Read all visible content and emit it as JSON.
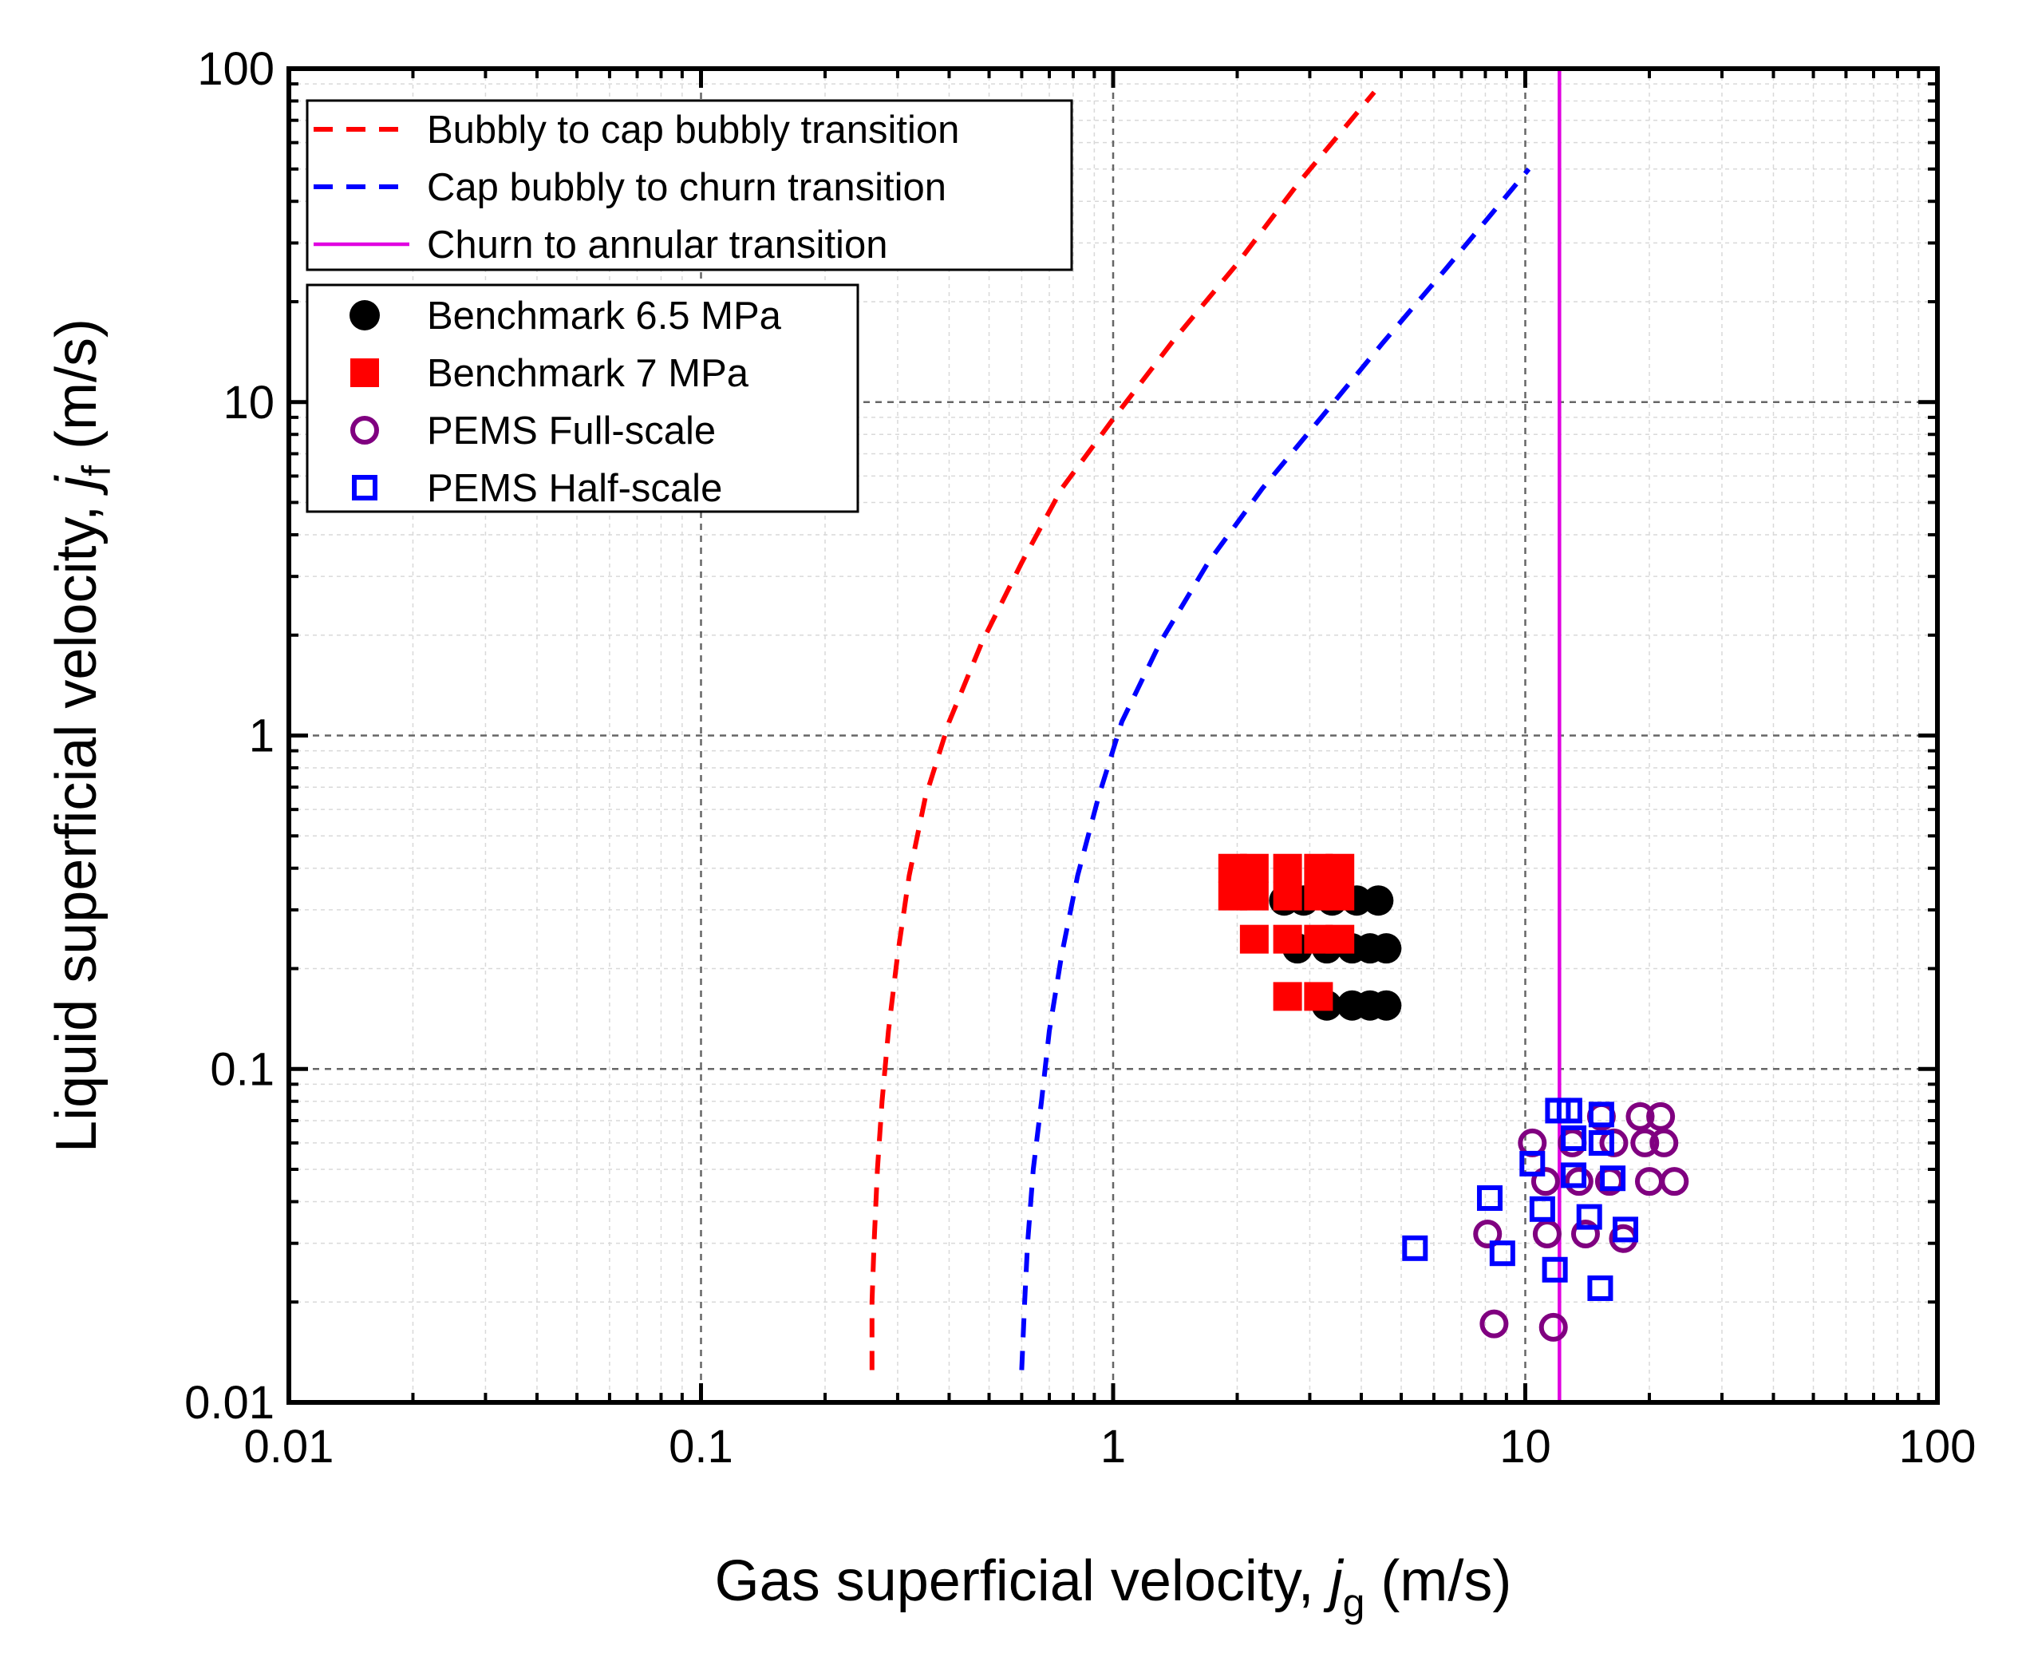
{
  "chart_data": {
    "type": "scatter",
    "xlabel_main": "Gas superficial velocity, ",
    "xlabel_var": "j",
    "xlabel_sub": "g",
    "xlabel_unit": " (m/s)",
    "ylabel_main": "Liquid superficial velocity, ",
    "ylabel_var": "j",
    "ylabel_sub": "f",
    "ylabel_unit": " (m/s)",
    "xscale": "log",
    "yscale": "log",
    "xlim": [
      0.01,
      100
    ],
    "ylim": [
      0.01,
      100
    ],
    "x_ticks": [
      {
        "value": 0.01,
        "label": "0.01"
      },
      {
        "value": 0.1,
        "label": "0.1"
      },
      {
        "value": 1,
        "label": "1"
      },
      {
        "value": 10,
        "label": "10"
      },
      {
        "value": 100,
        "label": "100"
      }
    ],
    "y_ticks": [
      {
        "value": 0.01,
        "label": "0.01"
      },
      {
        "value": 0.1,
        "label": "0.1"
      },
      {
        "value": 1,
        "label": "1"
      },
      {
        "value": 10,
        "label": "10"
      },
      {
        "value": 100,
        "label": "100"
      }
    ],
    "grid": true,
    "legend_lines_placement": "top-left",
    "legend_markers_placement": "top-left",
    "lines": [
      {
        "name": "Bubbly to cap bubbly transition",
        "color": "#ff0000",
        "style": "dashed",
        "points": [
          [
            0.26,
            0.0125
          ],
          [
            0.26,
            0.02
          ],
          [
            0.263,
            0.03
          ],
          [
            0.268,
            0.05
          ],
          [
            0.275,
            0.08
          ],
          [
            0.285,
            0.13
          ],
          [
            0.3,
            0.22
          ],
          [
            0.32,
            0.38
          ],
          [
            0.35,
            0.65
          ],
          [
            0.4,
            1.1
          ],
          [
            0.48,
            1.9
          ],
          [
            0.6,
            3.3
          ],
          [
            0.75,
            5.5
          ],
          [
            1.0,
            8.9
          ],
          [
            1.4,
            15.3
          ],
          [
            2.0,
            26
          ],
          [
            2.8,
            45
          ],
          [
            4.3,
            85
          ]
        ]
      },
      {
        "name": "Cap bubbly to churn transition",
        "color": "#0000ff",
        "style": "dashed",
        "points": [
          [
            0.6,
            0.0125
          ],
          [
            0.61,
            0.02
          ],
          [
            0.62,
            0.03
          ],
          [
            0.64,
            0.05
          ],
          [
            0.67,
            0.08
          ],
          [
            0.7,
            0.13
          ],
          [
            0.75,
            0.22
          ],
          [
            0.82,
            0.38
          ],
          [
            0.92,
            0.65
          ],
          [
            1.05,
            1.1
          ],
          [
            1.3,
            1.9
          ],
          [
            1.7,
            3.3
          ],
          [
            2.3,
            5.5
          ],
          [
            3.2,
            9.0
          ],
          [
            4.5,
            15
          ],
          [
            6.4,
            25
          ],
          [
            10.2,
            50
          ]
        ]
      },
      {
        "name": "Churn to annular transition",
        "color": "#e000e0",
        "style": "solid",
        "points": [
          [
            12.1,
            0.01
          ],
          [
            12.1,
            100
          ]
        ]
      }
    ],
    "series": [
      {
        "name": "Benchmark 6.5 MPa",
        "marker": "circle-filled",
        "color": "#000000",
        "points": [
          [
            2.6,
            0.32
          ],
          [
            2.9,
            0.32
          ],
          [
            3.4,
            0.32
          ],
          [
            3.9,
            0.32
          ],
          [
            4.4,
            0.32
          ],
          [
            2.8,
            0.23
          ],
          [
            3.3,
            0.23
          ],
          [
            3.8,
            0.23
          ],
          [
            4.2,
            0.23
          ],
          [
            4.6,
            0.23
          ],
          [
            3.3,
            0.155
          ],
          [
            3.8,
            0.155
          ],
          [
            4.2,
            0.155
          ],
          [
            4.6,
            0.155
          ]
        ]
      },
      {
        "name": "Benchmark 7 MPa",
        "marker": "square-filled",
        "color": "#ff0000",
        "points": [
          [
            1.95,
            0.4
          ],
          [
            2.2,
            0.4
          ],
          [
            2.65,
            0.4
          ],
          [
            3.15,
            0.4
          ],
          [
            3.55,
            0.4
          ],
          [
            1.95,
            0.33
          ],
          [
            2.2,
            0.33
          ],
          [
            2.65,
            0.33
          ],
          [
            3.15,
            0.33
          ],
          [
            3.55,
            0.33
          ],
          [
            2.2,
            0.245
          ],
          [
            2.65,
            0.245
          ],
          [
            3.15,
            0.245
          ],
          [
            3.55,
            0.245
          ],
          [
            2.65,
            0.165
          ],
          [
            3.15,
            0.165
          ]
        ]
      },
      {
        "name": "PEMS Full-scale",
        "marker": "circle-open",
        "color": "#800080",
        "points": [
          [
            10.4,
            0.06
          ],
          [
            13,
            0.06
          ],
          [
            15.3,
            0.072
          ],
          [
            16.4,
            0.06
          ],
          [
            19,
            0.072
          ],
          [
            21.3,
            0.072
          ],
          [
            19.5,
            0.06
          ],
          [
            21.7,
            0.06
          ],
          [
            11.2,
            0.046
          ],
          [
            13.5,
            0.046
          ],
          [
            16,
            0.046
          ],
          [
            20,
            0.046
          ],
          [
            23,
            0.046
          ],
          [
            8.1,
            0.032
          ],
          [
            11.3,
            0.032
          ],
          [
            14,
            0.032
          ],
          [
            17.3,
            0.031
          ],
          [
            8.4,
            0.0172
          ],
          [
            11.7,
            0.0168
          ]
        ]
      },
      {
        "name": "PEMS Half-scale",
        "marker": "square-open",
        "color": "#0000ff",
        "points": [
          [
            12,
            0.075
          ],
          [
            12.8,
            0.075
          ],
          [
            15.3,
            0.073
          ],
          [
            13.1,
            0.062
          ],
          [
            15.3,
            0.06
          ],
          [
            10.4,
            0.052
          ],
          [
            13.1,
            0.048
          ],
          [
            16.3,
            0.047
          ],
          [
            8.2,
            0.041
          ],
          [
            11,
            0.038
          ],
          [
            14.3,
            0.036
          ],
          [
            17.5,
            0.033
          ],
          [
            5.4,
            0.029
          ],
          [
            8.8,
            0.028
          ],
          [
            11.8,
            0.025
          ],
          [
            15.2,
            0.022
          ]
        ]
      }
    ]
  }
}
